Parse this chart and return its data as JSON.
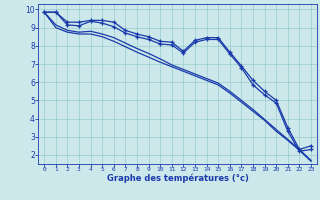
{
  "xlabel": "Graphe des températures (°c)",
  "xlim": [
    -0.5,
    23.5
  ],
  "ylim": [
    1.5,
    10.3
  ],
  "xticks": [
    0,
    1,
    2,
    3,
    4,
    5,
    6,
    7,
    8,
    9,
    10,
    11,
    12,
    13,
    14,
    15,
    16,
    17,
    18,
    19,
    20,
    21,
    22,
    23
  ],
  "yticks": [
    2,
    3,
    4,
    5,
    6,
    7,
    8,
    9,
    10
  ],
  "bg_color": "#cce8ea",
  "grid_color": "#99cccc",
  "line_color": "#1a3aab",
  "line1_x": [
    0,
    1,
    2,
    3,
    4,
    5,
    6,
    7,
    8,
    9,
    10,
    11,
    12,
    13,
    14,
    15,
    16,
    17,
    18,
    19,
    20,
    21,
    22,
    23
  ],
  "line1_y": [
    9.85,
    9.85,
    9.3,
    9.3,
    9.4,
    9.4,
    9.3,
    8.85,
    8.65,
    8.5,
    8.25,
    8.2,
    7.7,
    8.3,
    8.45,
    8.45,
    7.65,
    6.9,
    6.1,
    5.5,
    5.0,
    3.5,
    2.3,
    2.5
  ],
  "line2_x": [
    0,
    1,
    2,
    3,
    4,
    5,
    6,
    7,
    8,
    9,
    10,
    11,
    12,
    13,
    14,
    15,
    16,
    17,
    18,
    19,
    20,
    21,
    22,
    23
  ],
  "line2_y": [
    9.85,
    9.85,
    9.15,
    9.1,
    9.35,
    9.25,
    9.05,
    8.7,
    8.5,
    8.35,
    8.1,
    8.05,
    7.6,
    8.2,
    8.35,
    8.35,
    7.55,
    6.8,
    5.85,
    5.3,
    4.85,
    3.3,
    2.2,
    2.3
  ],
  "line3_x": [
    0,
    1,
    2,
    3,
    4,
    5,
    6,
    7,
    8,
    9,
    10,
    11,
    12,
    13,
    14,
    15,
    16,
    17,
    18,
    19,
    20,
    21,
    22,
    23
  ],
  "line3_y": [
    9.85,
    9.0,
    8.75,
    8.65,
    8.65,
    8.5,
    8.25,
    7.95,
    7.65,
    7.38,
    7.1,
    6.85,
    6.6,
    6.35,
    6.1,
    5.85,
    5.4,
    4.9,
    4.4,
    3.9,
    3.3,
    2.8,
    2.25,
    1.65
  ],
  "line4_x": [
    0,
    1,
    2,
    3,
    4,
    5,
    6,
    7,
    8,
    9,
    10,
    11,
    12,
    13,
    14,
    15,
    16,
    17,
    18,
    19,
    20,
    21,
    22,
    23
  ],
  "line4_y": [
    9.85,
    9.15,
    8.85,
    8.75,
    8.8,
    8.65,
    8.45,
    8.15,
    7.85,
    7.58,
    7.28,
    6.95,
    6.7,
    6.45,
    6.2,
    5.95,
    5.5,
    5.0,
    4.5,
    3.95,
    3.4,
    2.85,
    2.3,
    1.7
  ]
}
